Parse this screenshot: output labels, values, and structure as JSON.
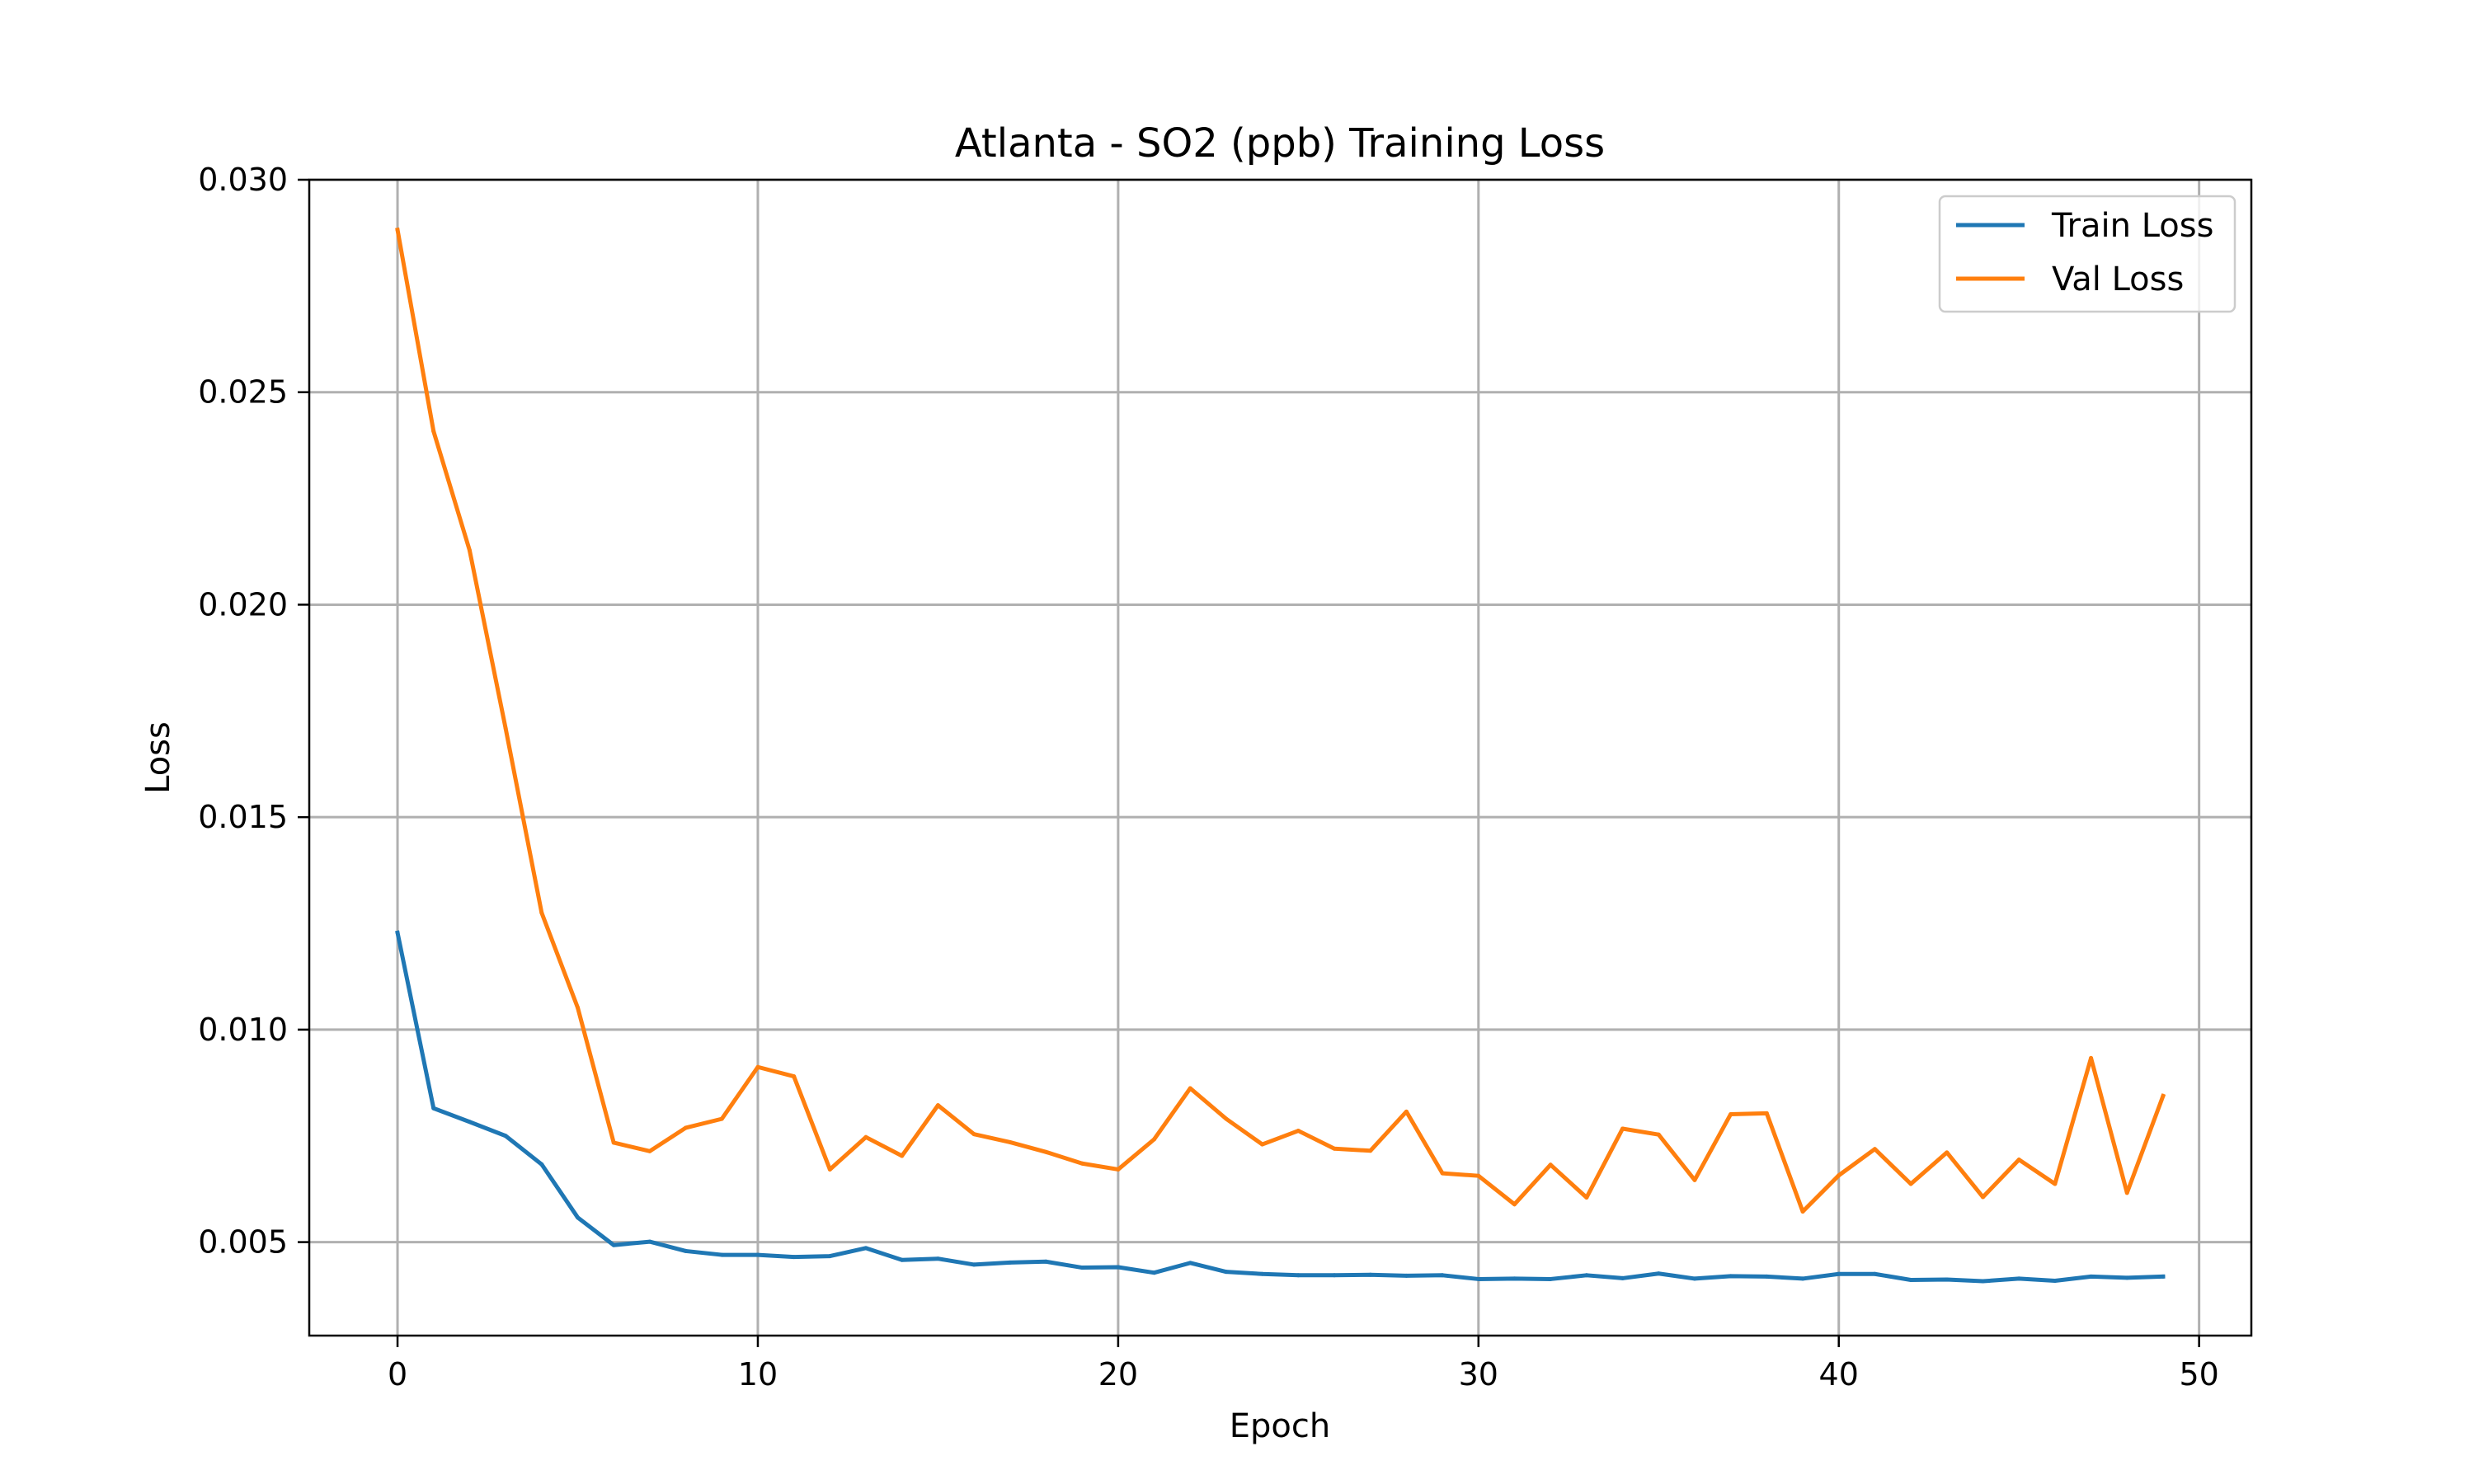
{
  "chart_data": {
    "type": "line",
    "title": "Atlanta - SO2 (ppb) Training Loss",
    "xlabel": "Epoch",
    "ylabel": "Loss",
    "xlim": [
      -2.45,
      51.45
    ],
    "ylim": [
      0.0028,
      0.03
    ],
    "xticks": [
      0,
      10,
      20,
      30,
      40,
      50
    ],
    "xtick_labels": [
      "0",
      "10",
      "20",
      "30",
      "40",
      "50"
    ],
    "yticks": [
      0.005,
      0.01,
      0.015,
      0.02,
      0.025,
      0.03
    ],
    "ytick_labels": [
      "0.005",
      "0.010",
      "0.015",
      "0.020",
      "0.025",
      "0.030"
    ],
    "grid": true,
    "legend_position": "upper-right",
    "series": [
      {
        "name": "Train Loss",
        "color": "#1f77b4",
        "x": [
          0,
          1,
          2,
          3,
          4,
          5,
          6,
          7,
          8,
          9,
          10,
          11,
          12,
          13,
          14,
          15,
          16,
          17,
          18,
          19,
          20,
          21,
          22,
          23,
          24,
          25,
          26,
          27,
          28,
          29,
          30,
          31,
          32,
          33,
          34,
          35,
          36,
          37,
          38,
          39,
          40,
          41,
          42,
          43,
          44,
          45,
          46,
          47,
          48,
          49
        ],
        "values": [
          0.01228,
          0.00815,
          0.00783,
          0.0075,
          0.00683,
          0.00558,
          0.00493,
          0.00501,
          0.00479,
          0.0047,
          0.0047,
          0.00465,
          0.00467,
          0.00486,
          0.00458,
          0.00461,
          0.00447,
          0.00452,
          0.00454,
          0.0044,
          0.00441,
          0.00428,
          0.00451,
          0.0043,
          0.00425,
          0.00422,
          0.00422,
          0.00423,
          0.00421,
          0.00422,
          0.00413,
          0.00414,
          0.00413,
          0.00422,
          0.00415,
          0.00426,
          0.00414,
          0.0042,
          0.00419,
          0.00414,
          0.00425,
          0.00425,
          0.00411,
          0.00412,
          0.00408,
          0.00414,
          0.00409,
          0.00419,
          0.00416,
          0.00419
        ]
      },
      {
        "name": "Val Loss",
        "color": "#ff7f0e",
        "x": [
          0,
          1,
          2,
          3,
          4,
          5,
          6,
          7,
          8,
          9,
          10,
          11,
          12,
          13,
          14,
          15,
          16,
          17,
          18,
          19,
          20,
          21,
          22,
          23,
          24,
          25,
          26,
          27,
          28,
          29,
          30,
          31,
          32,
          33,
          34,
          35,
          36,
          37,
          38,
          39,
          40,
          41,
          42,
          43,
          44,
          45,
          46,
          47,
          48,
          49
        ],
        "values": [
          0.02882,
          0.02408,
          0.02128,
          0.01709,
          0.01275,
          0.01052,
          0.00734,
          0.00714,
          0.00769,
          0.0079,
          0.00912,
          0.0089,
          0.00671,
          0.00747,
          0.00703,
          0.00822,
          0.00754,
          0.00735,
          0.00712,
          0.00685,
          0.00671,
          0.00742,
          0.00862,
          0.0079,
          0.0073,
          0.00762,
          0.0072,
          0.00715,
          0.00807,
          0.00662,
          0.00656,
          0.00589,
          0.00682,
          0.00605,
          0.00767,
          0.00753,
          0.00646,
          0.00801,
          0.00803,
          0.00572,
          0.00657,
          0.00719,
          0.00637,
          0.00711,
          0.00606,
          0.00694,
          0.00637,
          0.00933,
          0.00616,
          0.00844
        ]
      }
    ]
  }
}
